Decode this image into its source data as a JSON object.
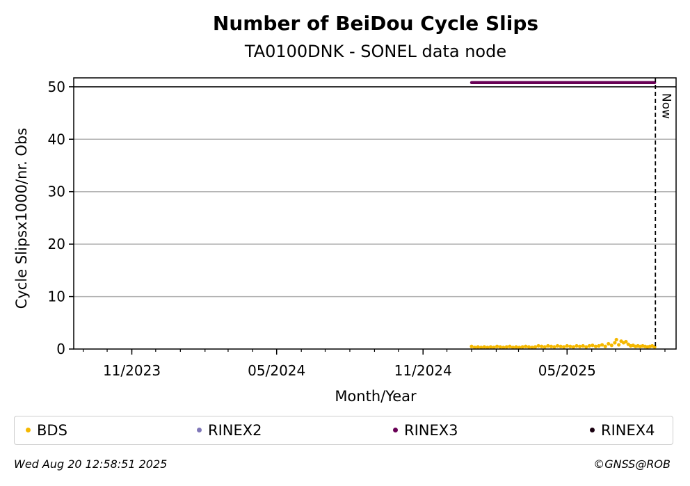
{
  "chart_data": {
    "type": "scatter",
    "title": "Number of BeiDou Cycle Slips",
    "subtitle": "TA0100DNK - SONEL data node",
    "xlabel": "Month/Year",
    "ylabel": "Cycle Slipsx1000/nr. Obs",
    "xlim": [
      "2023-08-20",
      "2025-09-15"
    ],
    "ylim": [
      0,
      51.7
    ],
    "x_ticks": [
      "2023-11-01",
      "2024-05-01",
      "2024-11-01",
      "2025-05-01"
    ],
    "x_tick_labels": [
      "11/2023",
      "05/2024",
      "11/2024",
      "05/2025"
    ],
    "y_ticks": [
      0,
      10,
      20,
      30,
      40,
      50
    ],
    "y_tick_labels": [
      "0",
      "10",
      "20",
      "30",
      "40",
      "50"
    ],
    "grid": "y",
    "reference_line": {
      "y": 50
    },
    "now_marker": {
      "date": "2025-08-20",
      "label": "Now"
    },
    "series": [
      {
        "name": "BDS",
        "color": "#f5b800",
        "points": [
          [
            "2025-01-01",
            0.5
          ],
          [
            "2025-01-05",
            0.3
          ],
          [
            "2025-01-09",
            0.4
          ],
          [
            "2025-01-13",
            0.3
          ],
          [
            "2025-01-17",
            0.4
          ],
          [
            "2025-01-21",
            0.3
          ],
          [
            "2025-01-25",
            0.4
          ],
          [
            "2025-01-29",
            0.3
          ],
          [
            "2025-02-02",
            0.5
          ],
          [
            "2025-02-06",
            0.4
          ],
          [
            "2025-02-10",
            0.3
          ],
          [
            "2025-02-14",
            0.4
          ],
          [
            "2025-02-18",
            0.5
          ],
          [
            "2025-02-22",
            0.3
          ],
          [
            "2025-02-26",
            0.4
          ],
          [
            "2025-03-02",
            0.3
          ],
          [
            "2025-03-06",
            0.4
          ],
          [
            "2025-03-10",
            0.5
          ],
          [
            "2025-03-14",
            0.4
          ],
          [
            "2025-03-18",
            0.3
          ],
          [
            "2025-03-22",
            0.4
          ],
          [
            "2025-03-26",
            0.6
          ],
          [
            "2025-03-30",
            0.5
          ],
          [
            "2025-04-03",
            0.4
          ],
          [
            "2025-04-07",
            0.6
          ],
          [
            "2025-04-11",
            0.5
          ],
          [
            "2025-04-15",
            0.4
          ],
          [
            "2025-04-19",
            0.6
          ],
          [
            "2025-04-23",
            0.5
          ],
          [
            "2025-04-27",
            0.4
          ],
          [
            "2025-05-01",
            0.6
          ],
          [
            "2025-05-05",
            0.5
          ],
          [
            "2025-05-09",
            0.4
          ],
          [
            "2025-05-13",
            0.6
          ],
          [
            "2025-05-17",
            0.5
          ],
          [
            "2025-05-21",
            0.6
          ],
          [
            "2025-05-25",
            0.4
          ],
          [
            "2025-05-29",
            0.6
          ],
          [
            "2025-06-02",
            0.7
          ],
          [
            "2025-06-06",
            0.5
          ],
          [
            "2025-06-10",
            0.6
          ],
          [
            "2025-06-14",
            0.8
          ],
          [
            "2025-06-18",
            0.5
          ],
          [
            "2025-06-22",
            1.0
          ],
          [
            "2025-06-26",
            0.7
          ],
          [
            "2025-06-30",
            1.2
          ],
          [
            "2025-07-02",
            1.8
          ],
          [
            "2025-07-05",
            0.8
          ],
          [
            "2025-07-08",
            1.5
          ],
          [
            "2025-07-11",
            1.2
          ],
          [
            "2025-07-14",
            1.4
          ],
          [
            "2025-07-17",
            0.9
          ],
          [
            "2025-07-20",
            0.6
          ],
          [
            "2025-07-23",
            0.7
          ],
          [
            "2025-07-26",
            0.5
          ],
          [
            "2025-07-29",
            0.6
          ],
          [
            "2025-08-01",
            0.5
          ],
          [
            "2025-08-04",
            0.6
          ],
          [
            "2025-08-07",
            0.5
          ],
          [
            "2025-08-10",
            0.4
          ],
          [
            "2025-08-13",
            0.5
          ],
          [
            "2025-08-16",
            0.6
          ],
          [
            "2025-08-19",
            0.4
          ]
        ]
      },
      {
        "name": "RINEX2",
        "color": "#7f77b8",
        "points": []
      },
      {
        "name": "RINEX3",
        "color": "#680055",
        "range": [
          "2025-01-01",
          "2025-08-19"
        ],
        "value": 50.8
      },
      {
        "name": "RINEX4",
        "color": "#1a0010",
        "points": []
      }
    ]
  },
  "footer": {
    "timestamp": "Wed Aug 20 12:58:51 2025",
    "credit": "©GNSS@ROB"
  }
}
